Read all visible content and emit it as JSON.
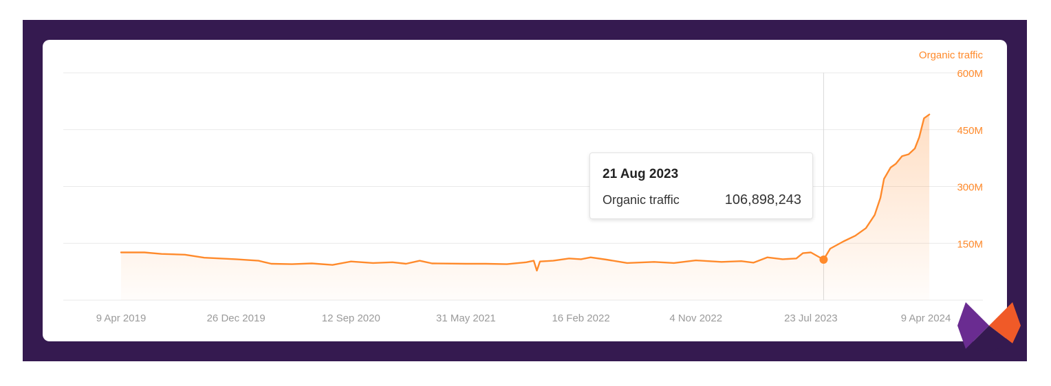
{
  "chart_data": {
    "type": "area",
    "series": [
      {
        "name": "Organic traffic",
        "color": "#ff8a2b",
        "points": [
          [
            "2019-04-09",
            126
          ],
          [
            "2019-06-01",
            126
          ],
          [
            "2019-07-10",
            122
          ],
          [
            "2019-09-01",
            120
          ],
          [
            "2019-10-15",
            112
          ],
          [
            "2019-12-26",
            108
          ],
          [
            "2020-02-15",
            104
          ],
          [
            "2020-03-15",
            96
          ],
          [
            "2020-05-01",
            95
          ],
          [
            "2020-06-15",
            97
          ],
          [
            "2020-08-01",
            93
          ],
          [
            "2020-09-12",
            102
          ],
          [
            "2020-11-01",
            98
          ],
          [
            "2020-12-15",
            100
          ],
          [
            "2021-01-15",
            96
          ],
          [
            "2021-02-15",
            104
          ],
          [
            "2021-03-15",
            97
          ],
          [
            "2021-05-31",
            96
          ],
          [
            "2021-07-15",
            96
          ],
          [
            "2021-09-01",
            95
          ],
          [
            "2021-10-15",
            100
          ],
          [
            "2021-11-01",
            104
          ],
          [
            "2021-11-08",
            78
          ],
          [
            "2021-11-15",
            102
          ],
          [
            "2021-12-15",
            104
          ],
          [
            "2022-01-20",
            110
          ],
          [
            "2022-02-16",
            108
          ],
          [
            "2022-03-10",
            113
          ],
          [
            "2022-04-15",
            107
          ],
          [
            "2022-06-01",
            98
          ],
          [
            "2022-08-01",
            101
          ],
          [
            "2022-09-15",
            98
          ],
          [
            "2022-11-04",
            105
          ],
          [
            "2023-01-01",
            101
          ],
          [
            "2023-02-15",
            103
          ],
          [
            "2023-03-15",
            99
          ],
          [
            "2023-04-15",
            113
          ],
          [
            "2023-05-20",
            108
          ],
          [
            "2023-06-20",
            110
          ],
          [
            "2023-07-05",
            124
          ],
          [
            "2023-07-23",
            126
          ],
          [
            "2023-08-21",
            107
          ],
          [
            "2023-09-05",
            136
          ],
          [
            "2023-10-05",
            155
          ],
          [
            "2023-11-01",
            170
          ],
          [
            "2023-11-25",
            190
          ],
          [
            "2023-12-15",
            225
          ],
          [
            "2023-12-28",
            270
          ],
          [
            "2024-01-05",
            320
          ],
          [
            "2024-01-20",
            350
          ],
          [
            "2024-02-01",
            360
          ],
          [
            "2024-02-15",
            380
          ],
          [
            "2024-03-01",
            385
          ],
          [
            "2024-03-15",
            400
          ],
          [
            "2024-03-25",
            430
          ],
          [
            "2024-04-05",
            480
          ],
          [
            "2024-04-17",
            490
          ]
        ]
      }
    ],
    "x_ticks": [
      "9 Apr 2019",
      "26 Dec 2019",
      "12 Sep 2020",
      "31 May 2021",
      "16 Feb 2022",
      "4 Nov 2022",
      "23 Jul 2023",
      "9 Apr 2024"
    ],
    "x_range": [
      "2019-04-09",
      "2024-04-09"
    ],
    "y_ticks": [
      "150M",
      "300M",
      "450M",
      "600M"
    ],
    "ylim": [
      0,
      600
    ],
    "y_unit": "M",
    "axis_label": "Organic traffic",
    "grid": true,
    "axis_position": "right",
    "highlight": {
      "date": "2023-08-21",
      "date_label": "21 Aug 2023",
      "series_label": "Organic traffic",
      "value_label": "106,898,243"
    }
  },
  "colors": {
    "background": "#351a50",
    "card": "#ffffff",
    "line": "#ff8a2b",
    "gridline": "#e9e9e9",
    "x_tick_text": "#9a9a9a",
    "logo_purple": "#6a2c91",
    "logo_orange": "#f05a28",
    "logo_dark": "#351a50"
  },
  "logo": {
    "icon": "brand-logo-icon"
  }
}
